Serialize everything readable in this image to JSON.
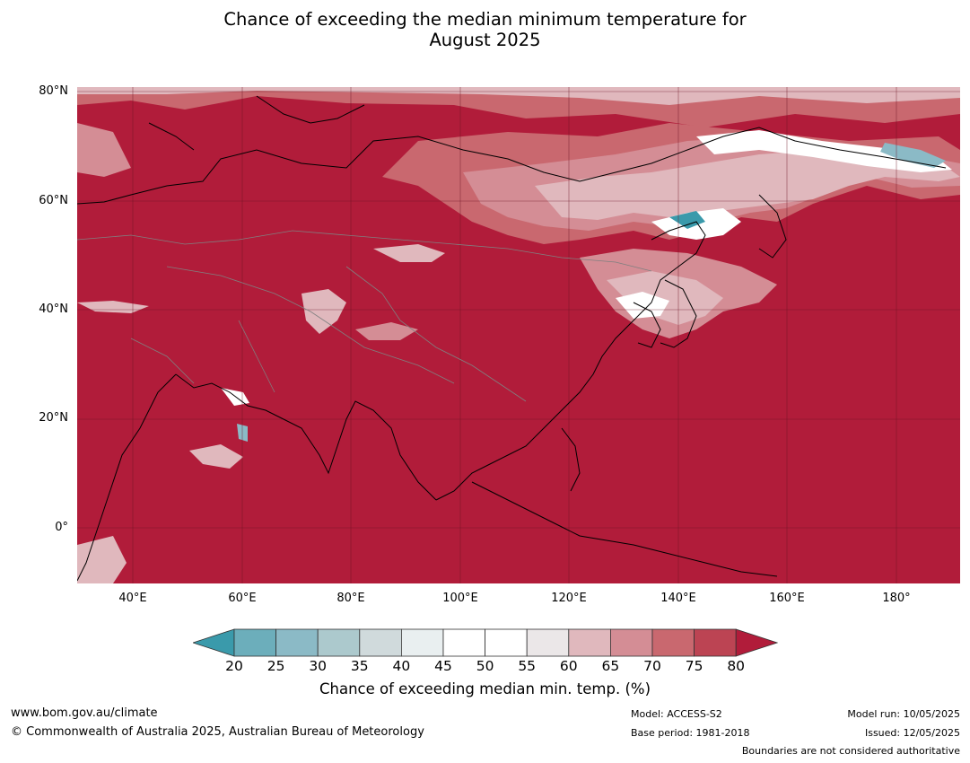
{
  "title_line1": "Chance of exceeding the median minimum temperature for",
  "title_line2": "August 2025",
  "map": {
    "lat_labels": [
      "80°N",
      "60°N",
      "40°N",
      "20°N",
      "0°"
    ],
    "lon_labels": [
      "40°E",
      "60°E",
      "80°E",
      "100°E",
      "120°E",
      "140°E",
      "160°E",
      "180°"
    ],
    "dominant_color": "#b11c3a",
    "region": "Asia"
  },
  "colorbar": {
    "ticks": [
      "20",
      "25",
      "30",
      "35",
      "40",
      "45",
      "50",
      "55",
      "60",
      "65",
      "70",
      "75",
      "80"
    ],
    "colors": [
      "#3a9aab",
      "#6caebb",
      "#8bbac6",
      "#acc9cd",
      "#d0dadc",
      "#e9eff0",
      "#ffffff",
      "#ffffff",
      "#ebe7e8",
      "#e0b8bd",
      "#d48d95",
      "#c9686f",
      "#bc4453",
      "#b11c3a"
    ],
    "label": "Chance of exceeding median min. temp. (%)"
  },
  "footer": {
    "url": "www.bom.gov.au/climate",
    "copyright": "© Commonwealth of Australia 2025, Australian Bureau of Meteorology",
    "model": "Model: ACCESS-S2",
    "base_period": "Base period: 1981-2018",
    "model_run": "Model run: 10/05/2025",
    "issued": "Issued: 12/05/2025",
    "disclaimer": "Boundaries are not considered authoritative"
  }
}
